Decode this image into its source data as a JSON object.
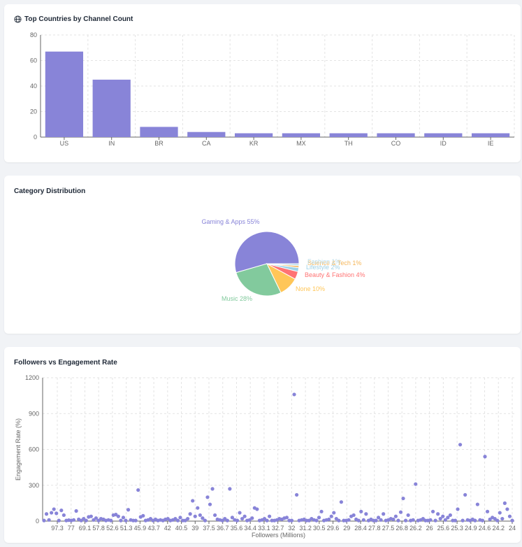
{
  "cards": {
    "countries": {
      "title": "Top Countries by Channel Count",
      "icon": "globe-icon"
    },
    "category": {
      "title": "Category Distribution"
    },
    "followers": {
      "title": "Followers vs Engagement Rate"
    }
  },
  "colors": {
    "bar": "#8884d8",
    "grid": "#e3e3e3",
    "axis": "#666666",
    "slices": [
      "#8884d8",
      "#82ca9d",
      "#ffc658",
      "#ff7373",
      "#9ed1e6",
      "#f5b65a",
      "#b8dbe8"
    ]
  },
  "chart_data": [
    {
      "type": "bar",
      "title": "Top Countries by Channel Count",
      "categories": [
        "US",
        "IN",
        "BR",
        "CA",
        "KR",
        "MX",
        "TH",
        "CO",
        "ID",
        "IE"
      ],
      "values": [
        67,
        45,
        8,
        4,
        3,
        3,
        3,
        3,
        3,
        3
      ],
      "ylim": [
        0,
        80
      ],
      "yticks": [
        0,
        20,
        40,
        60,
        80
      ],
      "grid": true
    },
    {
      "type": "pie",
      "title": "Category Distribution",
      "slices": [
        {
          "label": "Gaming & Apps 55%",
          "value": 55
        },
        {
          "label": "Music 28%",
          "value": 28
        },
        {
          "label": "None 10%",
          "value": 10
        },
        {
          "label": "Beauty & Fashion 4%",
          "value": 4
        },
        {
          "label": "Lifestyle 2%",
          "value": 2
        },
        {
          "label": "Science & Tech 1%",
          "value": 1
        },
        {
          "label": "Fashion 1%",
          "value": 1
        }
      ]
    },
    {
      "type": "scatter",
      "title": "Followers vs Engagement Rate",
      "xlabel": "Followers (Millions)",
      "ylabel": "Engagement Rate (%)",
      "ylim": [
        0,
        1200
      ],
      "yticks": [
        0,
        300,
        600,
        900,
        1200
      ],
      "xticks": [
        "97.3",
        "77",
        "69.1",
        "57.8",
        "52.6",
        "51.3",
        "45.9",
        "43.7",
        "42",
        "40.5",
        "39",
        "37.5",
        "36.7",
        "35.6",
        "34.4",
        "33.1",
        "32.7",
        "32",
        "31.2",
        "30.5",
        "29.6",
        "29",
        "28.4",
        "27.8",
        "27.5",
        "26.8",
        "26.2",
        "26",
        "25.6",
        "25.3",
        "24.9",
        "24.6",
        "24.2",
        "24"
      ],
      "grid": true,
      "y": [
        5,
        60,
        10,
        70,
        100,
        65,
        5,
        90,
        50,
        5,
        8,
        5,
        10,
        85,
        15,
        5,
        20,
        5,
        35,
        40,
        10,
        25,
        5,
        20,
        15,
        5,
        10,
        5,
        50,
        55,
        40,
        5,
        30,
        5,
        95,
        10,
        5,
        5,
        260,
        35,
        45,
        5,
        10,
        20,
        5,
        15,
        5,
        10,
        5,
        15,
        20,
        5,
        10,
        20,
        5,
        30,
        5,
        5,
        20,
        60,
        170,
        40,
        110,
        50,
        25,
        5,
        200,
        140,
        270,
        50,
        15,
        10,
        5,
        20,
        5,
        270,
        30,
        10,
        5,
        70,
        20,
        40,
        5,
        10,
        25,
        110,
        100,
        5,
        10,
        20,
        5,
        40,
        5,
        5,
        10,
        20,
        15,
        25,
        30,
        5,
        5,
        1060,
        220,
        5,
        10,
        15,
        5,
        5,
        20,
        10,
        5,
        30,
        80,
        5,
        10,
        15,
        40,
        70,
        20,
        5,
        160,
        5,
        5,
        10,
        40,
        50,
        15,
        5,
        80,
        10,
        60,
        5,
        15,
        5,
        5,
        30,
        10,
        60,
        5,
        10,
        20,
        15,
        40,
        5,
        75,
        190,
        5,
        50,
        5,
        10,
        310,
        5,
        10,
        20,
        5,
        5,
        10,
        80,
        5,
        60,
        20,
        40,
        10,
        30,
        50,
        5,
        5,
        100,
        640,
        5,
        220,
        10,
        5,
        15,
        5,
        140,
        10,
        5,
        540,
        80,
        15,
        30,
        20,
        5,
        70,
        20,
        150,
        100,
        40,
        5
      ]
    }
  ]
}
